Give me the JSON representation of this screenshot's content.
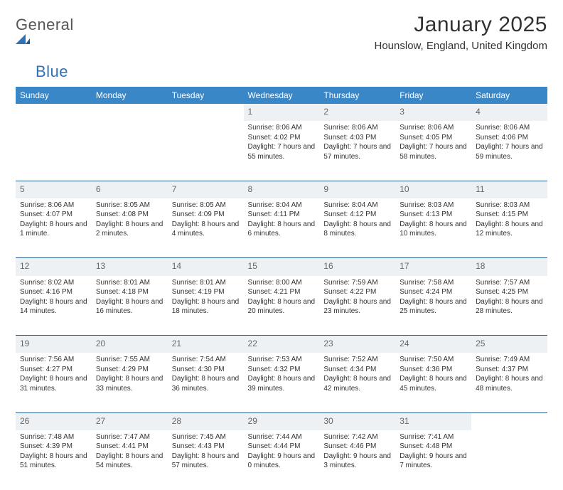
{
  "logo": {
    "word1": "General",
    "word2": "Blue"
  },
  "title": "January 2025",
  "location": "Hounslow, England, United Kingdom",
  "colors": {
    "header_bg": "#3a87c8",
    "header_text": "#ffffff",
    "daynum_bg": "#eef1f3",
    "rule": "#2b5f8f",
    "logo_accent": "#2f72b8",
    "text": "#333333"
  },
  "day_headers": [
    "Sunday",
    "Monday",
    "Tuesday",
    "Wednesday",
    "Thursday",
    "Friday",
    "Saturday"
  ],
  "weeks": [
    [
      null,
      null,
      null,
      {
        "num": "1",
        "sunrise": "Sunrise: 8:06 AM",
        "sunset": "Sunset: 4:02 PM",
        "daylight": "Daylight: 7 hours and 55 minutes."
      },
      {
        "num": "2",
        "sunrise": "Sunrise: 8:06 AM",
        "sunset": "Sunset: 4:03 PM",
        "daylight": "Daylight: 7 hours and 57 minutes."
      },
      {
        "num": "3",
        "sunrise": "Sunrise: 8:06 AM",
        "sunset": "Sunset: 4:05 PM",
        "daylight": "Daylight: 7 hours and 58 minutes."
      },
      {
        "num": "4",
        "sunrise": "Sunrise: 8:06 AM",
        "sunset": "Sunset: 4:06 PM",
        "daylight": "Daylight: 7 hours and 59 minutes."
      }
    ],
    [
      {
        "num": "5",
        "sunrise": "Sunrise: 8:06 AM",
        "sunset": "Sunset: 4:07 PM",
        "daylight": "Daylight: 8 hours and 1 minute."
      },
      {
        "num": "6",
        "sunrise": "Sunrise: 8:05 AM",
        "sunset": "Sunset: 4:08 PM",
        "daylight": "Daylight: 8 hours and 2 minutes."
      },
      {
        "num": "7",
        "sunrise": "Sunrise: 8:05 AM",
        "sunset": "Sunset: 4:09 PM",
        "daylight": "Daylight: 8 hours and 4 minutes."
      },
      {
        "num": "8",
        "sunrise": "Sunrise: 8:04 AM",
        "sunset": "Sunset: 4:11 PM",
        "daylight": "Daylight: 8 hours and 6 minutes."
      },
      {
        "num": "9",
        "sunrise": "Sunrise: 8:04 AM",
        "sunset": "Sunset: 4:12 PM",
        "daylight": "Daylight: 8 hours and 8 minutes."
      },
      {
        "num": "10",
        "sunrise": "Sunrise: 8:03 AM",
        "sunset": "Sunset: 4:13 PM",
        "daylight": "Daylight: 8 hours and 10 minutes."
      },
      {
        "num": "11",
        "sunrise": "Sunrise: 8:03 AM",
        "sunset": "Sunset: 4:15 PM",
        "daylight": "Daylight: 8 hours and 12 minutes."
      }
    ],
    [
      {
        "num": "12",
        "sunrise": "Sunrise: 8:02 AM",
        "sunset": "Sunset: 4:16 PM",
        "daylight": "Daylight: 8 hours and 14 minutes."
      },
      {
        "num": "13",
        "sunrise": "Sunrise: 8:01 AM",
        "sunset": "Sunset: 4:18 PM",
        "daylight": "Daylight: 8 hours and 16 minutes."
      },
      {
        "num": "14",
        "sunrise": "Sunrise: 8:01 AM",
        "sunset": "Sunset: 4:19 PM",
        "daylight": "Daylight: 8 hours and 18 minutes."
      },
      {
        "num": "15",
        "sunrise": "Sunrise: 8:00 AM",
        "sunset": "Sunset: 4:21 PM",
        "daylight": "Daylight: 8 hours and 20 minutes."
      },
      {
        "num": "16",
        "sunrise": "Sunrise: 7:59 AM",
        "sunset": "Sunset: 4:22 PM",
        "daylight": "Daylight: 8 hours and 23 minutes."
      },
      {
        "num": "17",
        "sunrise": "Sunrise: 7:58 AM",
        "sunset": "Sunset: 4:24 PM",
        "daylight": "Daylight: 8 hours and 25 minutes."
      },
      {
        "num": "18",
        "sunrise": "Sunrise: 7:57 AM",
        "sunset": "Sunset: 4:25 PM",
        "daylight": "Daylight: 8 hours and 28 minutes."
      }
    ],
    [
      {
        "num": "19",
        "sunrise": "Sunrise: 7:56 AM",
        "sunset": "Sunset: 4:27 PM",
        "daylight": "Daylight: 8 hours and 31 minutes."
      },
      {
        "num": "20",
        "sunrise": "Sunrise: 7:55 AM",
        "sunset": "Sunset: 4:29 PM",
        "daylight": "Daylight: 8 hours and 33 minutes."
      },
      {
        "num": "21",
        "sunrise": "Sunrise: 7:54 AM",
        "sunset": "Sunset: 4:30 PM",
        "daylight": "Daylight: 8 hours and 36 minutes."
      },
      {
        "num": "22",
        "sunrise": "Sunrise: 7:53 AM",
        "sunset": "Sunset: 4:32 PM",
        "daylight": "Daylight: 8 hours and 39 minutes."
      },
      {
        "num": "23",
        "sunrise": "Sunrise: 7:52 AM",
        "sunset": "Sunset: 4:34 PM",
        "daylight": "Daylight: 8 hours and 42 minutes."
      },
      {
        "num": "24",
        "sunrise": "Sunrise: 7:50 AM",
        "sunset": "Sunset: 4:36 PM",
        "daylight": "Daylight: 8 hours and 45 minutes."
      },
      {
        "num": "25",
        "sunrise": "Sunrise: 7:49 AM",
        "sunset": "Sunset: 4:37 PM",
        "daylight": "Daylight: 8 hours and 48 minutes."
      }
    ],
    [
      {
        "num": "26",
        "sunrise": "Sunrise: 7:48 AM",
        "sunset": "Sunset: 4:39 PM",
        "daylight": "Daylight: 8 hours and 51 minutes."
      },
      {
        "num": "27",
        "sunrise": "Sunrise: 7:47 AM",
        "sunset": "Sunset: 4:41 PM",
        "daylight": "Daylight: 8 hours and 54 minutes."
      },
      {
        "num": "28",
        "sunrise": "Sunrise: 7:45 AM",
        "sunset": "Sunset: 4:43 PM",
        "daylight": "Daylight: 8 hours and 57 minutes."
      },
      {
        "num": "29",
        "sunrise": "Sunrise: 7:44 AM",
        "sunset": "Sunset: 4:44 PM",
        "daylight": "Daylight: 9 hours and 0 minutes."
      },
      {
        "num": "30",
        "sunrise": "Sunrise: 7:42 AM",
        "sunset": "Sunset: 4:46 PM",
        "daylight": "Daylight: 9 hours and 3 minutes."
      },
      {
        "num": "31",
        "sunrise": "Sunrise: 7:41 AM",
        "sunset": "Sunset: 4:48 PM",
        "daylight": "Daylight: 9 hours and 7 minutes."
      },
      null
    ]
  ]
}
